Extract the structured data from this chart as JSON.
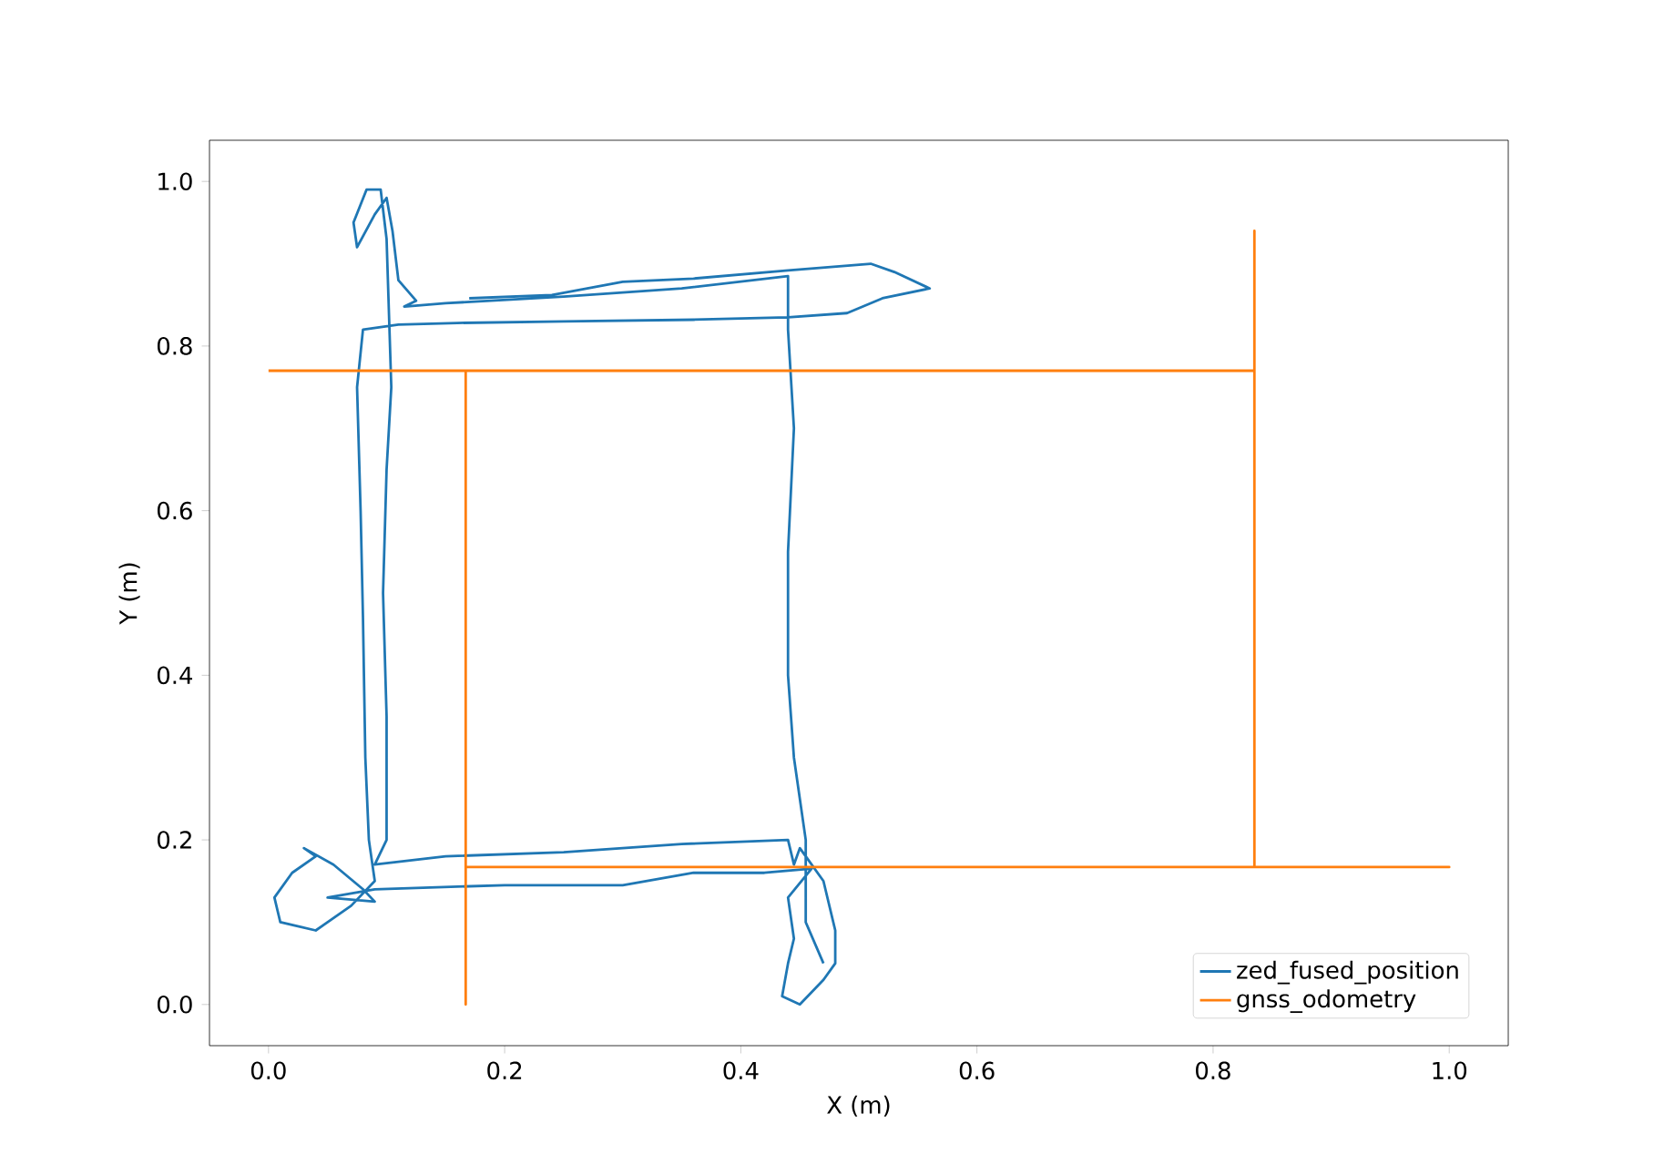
{
  "chart_data": {
    "type": "line",
    "xlabel": "X (m)",
    "ylabel": "Y (m)",
    "xlim": [
      -0.05,
      1.05
    ],
    "ylim": [
      -0.05,
      1.05
    ],
    "xticks": [
      {
        "value": 0,
        "label": "0.0"
      },
      0.2,
      0.4,
      0.6,
      0.8,
      {
        "value": 1,
        "label": "1.0"
      }
    ],
    "yticks": [
      {
        "value": 0,
        "label": "0.0"
      },
      0.2,
      0.4,
      0.6,
      0.8,
      {
        "value": 1,
        "label": "1.0"
      }
    ],
    "legend": "bottom right",
    "grid": false,
    "series": [
      {
        "name": "zed_fused_position",
        "color": "#1f77b4",
        "x": [
          0.17,
          0.24,
          0.3,
          0.36,
          0.44,
          0.51,
          0.53,
          0.56,
          0.52,
          0.49,
          0.44,
          0.36,
          0.25,
          0.16,
          0.11,
          0.08,
          0.075,
          0.078,
          0.08,
          0.082,
          0.085,
          0.09,
          0.07,
          0.04,
          0.01,
          0.005,
          0.02,
          0.04,
          0.03,
          0.055,
          0.08,
          0.09,
          0.05,
          0.09,
          0.2,
          0.3,
          0.36,
          0.42,
          0.46,
          0.44,
          0.445,
          0.44,
          0.435,
          0.45,
          0.47,
          0.48,
          0.48,
          0.47,
          0.455,
          0.45,
          0.445,
          0.44,
          0.35,
          0.25,
          0.15,
          0.09,
          0.1,
          0.1,
          0.097,
          0.1,
          0.104,
          0.1,
          0.095,
          0.083,
          0.072,
          0.075,
          0.09,
          0.1,
          0.105,
          0.11,
          0.125,
          0.115,
          0.15,
          0.25,
          0.35,
          0.44,
          0.44,
          0.445,
          0.44,
          0.44,
          0.445,
          0.455,
          0.455,
          0.47
        ],
        "values": [
          0.858,
          0.862,
          0.878,
          0.882,
          0.892,
          0.9,
          0.89,
          0.87,
          0.858,
          0.84,
          0.835,
          0.832,
          0.83,
          0.828,
          0.826,
          0.82,
          0.75,
          0.6,
          0.47,
          0.3,
          0.2,
          0.15,
          0.12,
          0.09,
          0.1,
          0.13,
          0.16,
          0.18,
          0.19,
          0.17,
          0.14,
          0.125,
          0.13,
          0.14,
          0.145,
          0.145,
          0.16,
          0.16,
          0.165,
          0.13,
          0.08,
          0.05,
          0.01,
          0.0,
          0.03,
          0.05,
          0.09,
          0.15,
          0.18,
          0.19,
          0.17,
          0.2,
          0.195,
          0.185,
          0.18,
          0.17,
          0.2,
          0.35,
          0.5,
          0.65,
          0.75,
          0.93,
          0.99,
          0.99,
          0.95,
          0.92,
          0.96,
          0.98,
          0.94,
          0.88,
          0.855,
          0.848,
          0.852,
          0.86,
          0.87,
          0.885,
          0.82,
          0.7,
          0.55,
          0.4,
          0.3,
          0.2,
          0.1,
          0.05
        ]
      },
      {
        "name": "gnss_odometry",
        "color": "#ff7f0e",
        "x": [
          0.0,
          0.167,
          0.167,
          0.167,
          1.0,
          0.835,
          0.835,
          0.835,
          0.167
        ],
        "values": [
          0.77,
          0.77,
          0.0,
          0.167,
          0.167,
          0.167,
          0.94,
          0.77,
          0.77
        ]
      }
    ]
  }
}
